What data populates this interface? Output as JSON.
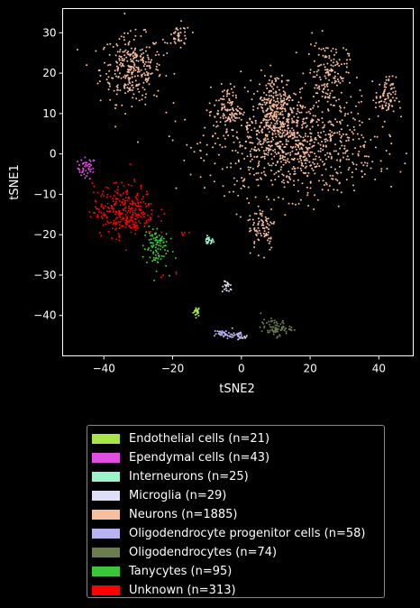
{
  "chart_data": {
    "type": "scatter",
    "xlabel": "tSNE2",
    "ylabel": "tSNE1",
    "xlim": [
      -52,
      50
    ],
    "ylim": [
      -50,
      36
    ],
    "xticks": [
      -40,
      -20,
      0,
      20,
      40
    ],
    "yticks": [
      30,
      20,
      10,
      0,
      -10,
      -20,
      -30,
      -40
    ],
    "legend_placement": "below",
    "series": [
      {
        "name": "Endothelial cells (n=21)",
        "color": "#a8e44a",
        "clusters": [
          {
            "x": -13,
            "y": -39,
            "sx": 0.5,
            "sy": 0.6,
            "n": 21
          }
        ]
      },
      {
        "name": "Ependymal cells (n=43)",
        "color": "#e14fe0",
        "clusters": [
          {
            "x": -45,
            "y": -3.5,
            "sx": 1.3,
            "sy": 1.3,
            "n": 43
          }
        ]
      },
      {
        "name": "Interneurons (n=25)",
        "color": "#9df3c9",
        "clusters": [
          {
            "x": -9.5,
            "y": -21.5,
            "sx": 0.7,
            "sy": 0.5,
            "n": 25
          }
        ]
      },
      {
        "name": "Microglia (n=29)",
        "color": "#dedff5",
        "clusters": [
          {
            "x": -4,
            "y": -33,
            "sx": 0.8,
            "sy": 0.7,
            "n": 21
          },
          {
            "x": 0,
            "y": -45.5,
            "sx": 0.6,
            "sy": 0.3,
            "n": 8
          }
        ]
      },
      {
        "name": "Neurons (n=1885)",
        "color": "#f7bfa0",
        "clusters": [
          {
            "x": -32,
            "y": 21,
            "sx": 4.5,
            "sy": 4.2,
            "n": 300
          },
          {
            "x": -18,
            "y": 29,
            "sx": 1.6,
            "sy": 1.6,
            "n": 40
          },
          {
            "x": 15,
            "y": 2,
            "sx": 12,
            "sy": 6,
            "n": 900
          },
          {
            "x": 25,
            "y": 20,
            "sx": 3,
            "sy": 4,
            "n": 150
          },
          {
            "x": 42,
            "y": 14,
            "sx": 1.5,
            "sy": 2.5,
            "n": 80
          },
          {
            "x": -4,
            "y": 11,
            "sx": 2,
            "sy": 3,
            "n": 100
          },
          {
            "x": 6,
            "y": -18,
            "sx": 2,
            "sy": 3,
            "n": 80
          },
          {
            "x": 10,
            "y": 12,
            "sx": 3,
            "sy": 4,
            "n": 235
          }
        ]
      },
      {
        "name": "Oligodendrocyte progenitor cells (n=58)",
        "color": "#b8b4f2",
        "clusters": [
          {
            "x": -5,
            "y": -44.5,
            "sx": 1.5,
            "sy": 0.5,
            "n": 35
          },
          {
            "x": -1,
            "y": -45,
            "sx": 1.5,
            "sy": 0.4,
            "n": 23
          }
        ]
      },
      {
        "name": "Oligodendrocytes (n=74)",
        "color": "#6b7d4f",
        "clusters": [
          {
            "x": 10,
            "y": -43,
            "sx": 2.2,
            "sy": 1.0,
            "n": 74
          }
        ]
      },
      {
        "name": "Tanycytes (n=95)",
        "color": "#3cc43a",
        "clusters": [
          {
            "x": -25,
            "y": -23,
            "sx": 1.8,
            "sy": 2.8,
            "n": 95
          }
        ]
      },
      {
        "name": "Unknown (n=313)",
        "color": "#ff0000",
        "clusters": [
          {
            "x": -34,
            "y": -14,
            "sx": 4.5,
            "sy": 3.2,
            "n": 303
          },
          {
            "x": -16.5,
            "y": -19.5,
            "sx": 0.6,
            "sy": 0.3,
            "n": 5
          },
          {
            "x": -19,
            "y": -29.5,
            "sx": 0.3,
            "sy": 0.3,
            "n": 2
          },
          {
            "x": -23,
            "y": -30.5,
            "sx": 0.3,
            "sy": 0.3,
            "n": 3
          }
        ]
      }
    ]
  }
}
